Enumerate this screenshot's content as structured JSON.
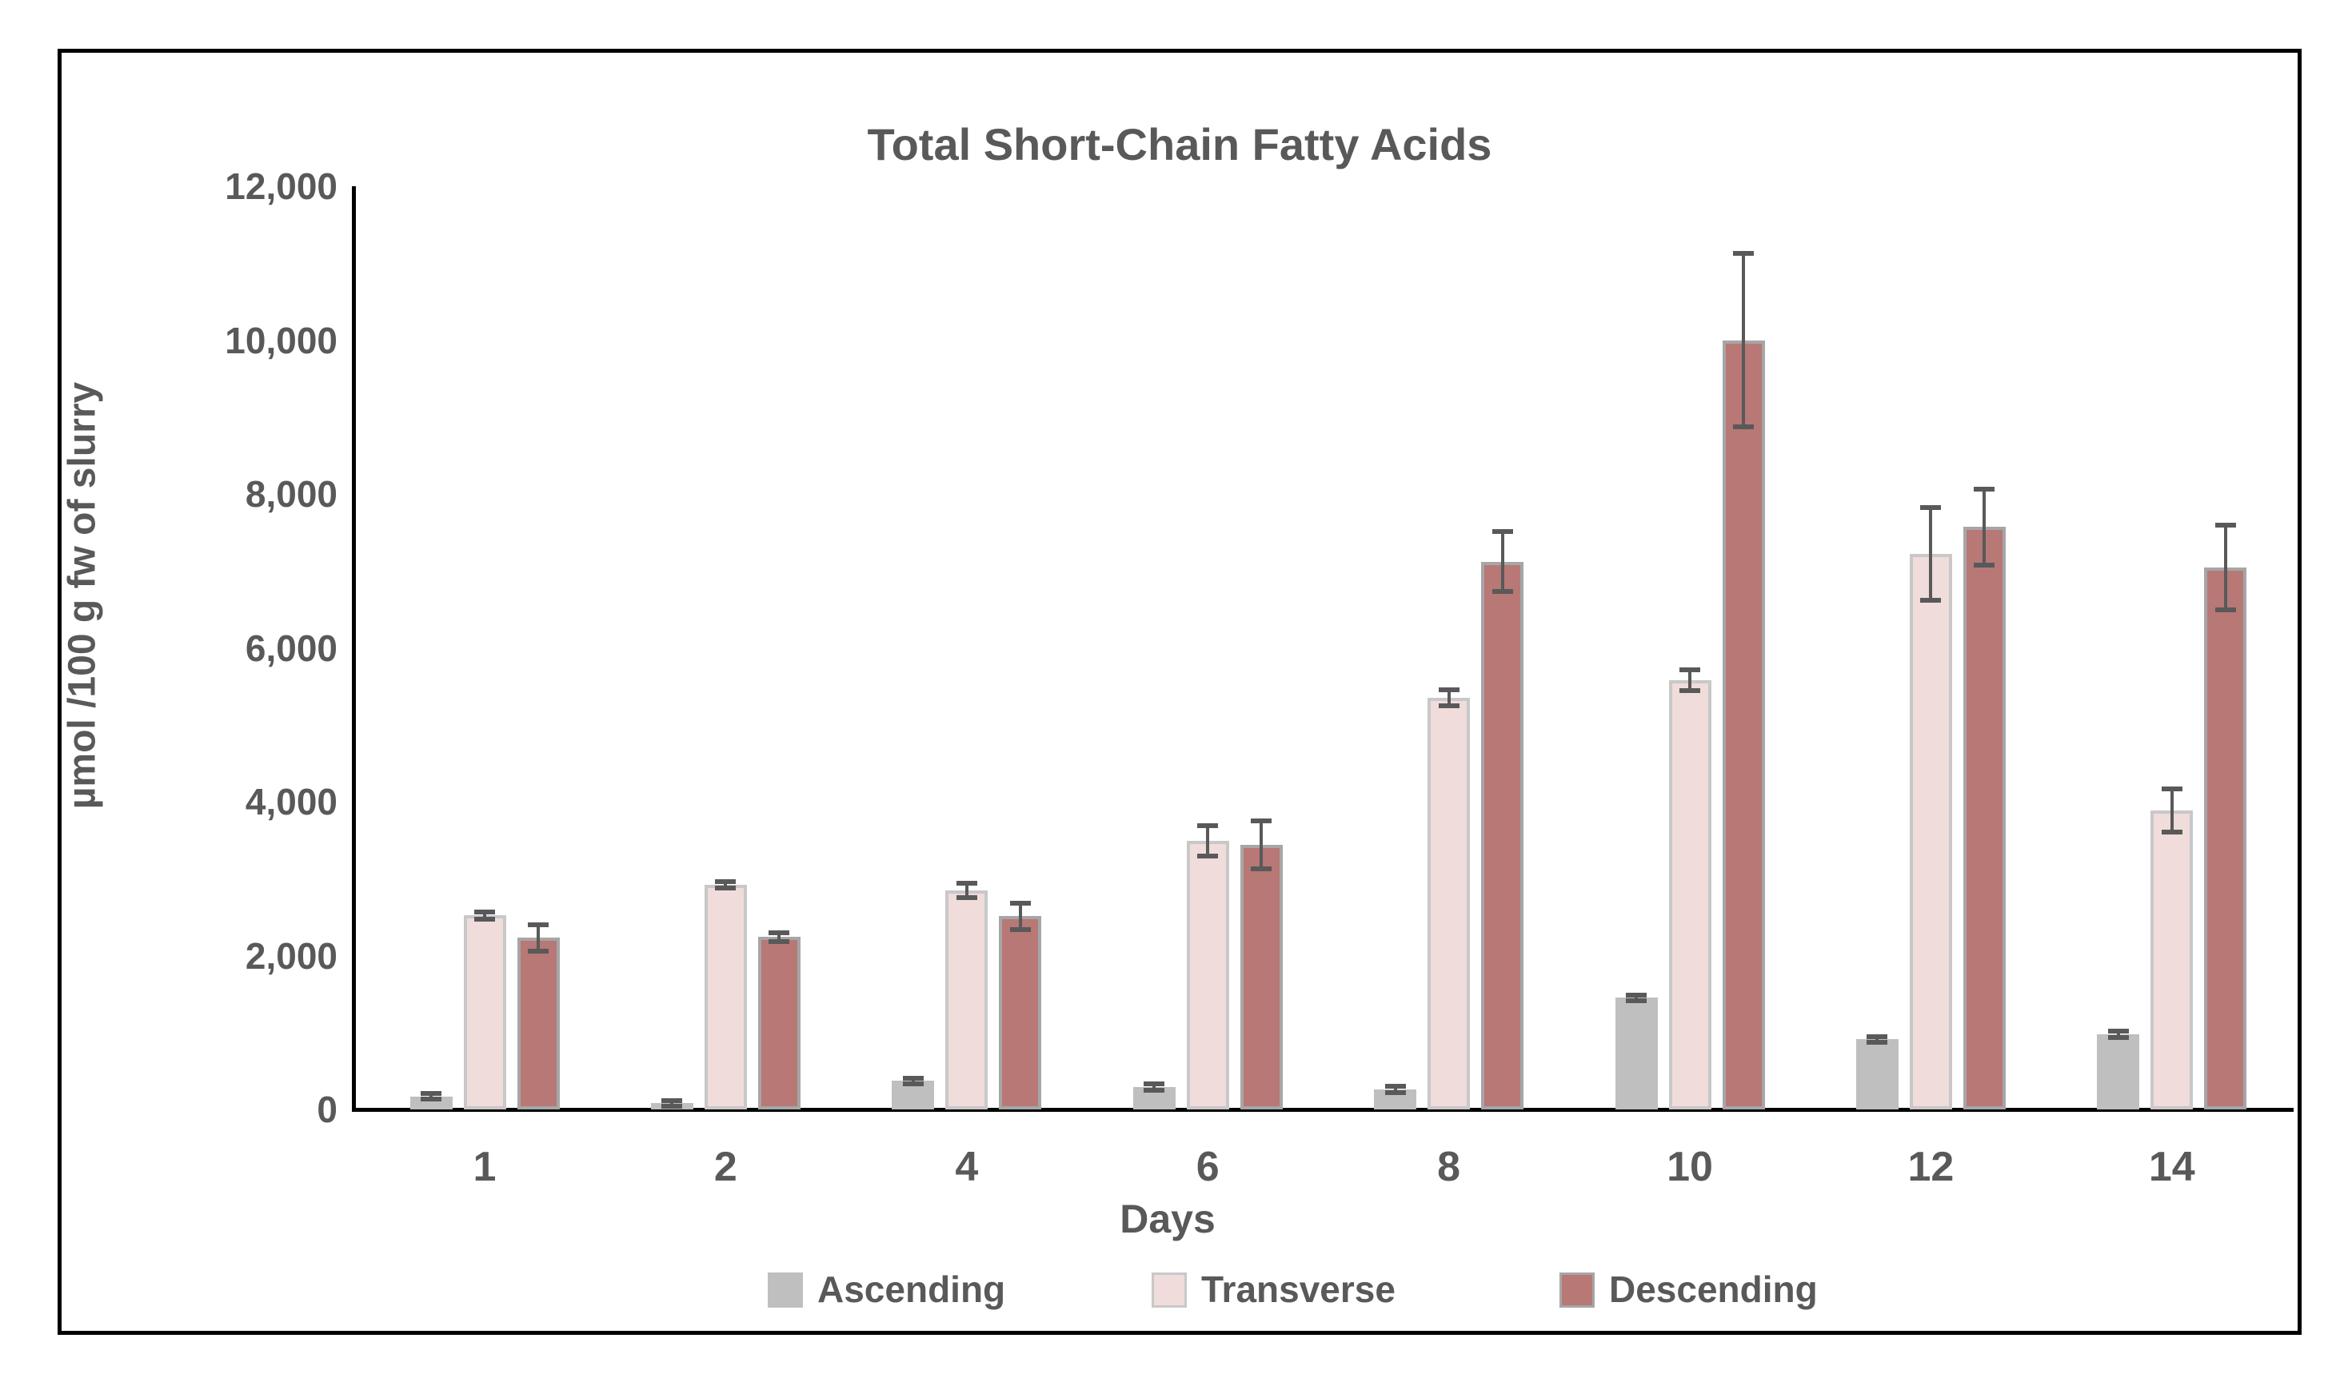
{
  "title": "Total Short-Chain Fatty Acids",
  "y_axis": {
    "title": "µmol /100 g fw of slurry",
    "tick_labels": [
      "12,000",
      "10,000",
      "8,000",
      "6,000",
      "4,000",
      "2,000",
      "0"
    ],
    "min": 0,
    "max": 12000,
    "major_unit": 2000
  },
  "x_axis": {
    "title": "Days",
    "tick_labels": [
      "1",
      "2",
      "4",
      "6",
      "8",
      "10",
      "12",
      "14"
    ]
  },
  "legend": {
    "position": "bottom",
    "entries": [
      "Ascending",
      "Transverse",
      "Descending"
    ]
  },
  "colors": {
    "text": "#595959",
    "axis_line": "#000000",
    "error_bar": "#595959",
    "ascending_fill": "#bfbfbf",
    "transverse_fill": "#f0dcdb",
    "transverse_border": "#c8c8c8",
    "descending_fill": "#b77876",
    "descending_border": "#a6a6a6"
  },
  "chart_data": {
    "type": "bar",
    "title": "Total Short-Chain Fatty Acids",
    "xlabel": "Days",
    "ylabel": "µmol /100 g fw of slurry",
    "ylim": [
      0,
      12000
    ],
    "grid": false,
    "legend_position": "bottom",
    "categories": [
      "1",
      "2",
      "4",
      "6",
      "8",
      "10",
      "12",
      "14"
    ],
    "series": [
      {
        "name": "Ascending",
        "color": "#bfbfbf",
        "border_color": "",
        "values": [
          170,
          80,
          370,
          290,
          260,
          1450,
          910,
          980
        ],
        "errors": [
          35,
          35,
          40,
          40,
          40,
          40,
          40,
          40
        ]
      },
      {
        "name": "Transverse",
        "color": "#f0dcdb",
        "border_color": "#c8c8c8",
        "values": [
          2520,
          2920,
          2850,
          3490,
          5350,
          5580,
          7220,
          3890
        ],
        "errors": [
          50,
          45,
          95,
          200,
          100,
          135,
          600,
          280
        ]
      },
      {
        "name": "Descending",
        "color": "#b77876",
        "border_color": "#a6a6a6",
        "values": [
          2230,
          2240,
          2510,
          3440,
          7120,
          10000,
          7570,
          7040
        ],
        "errors": [
          170,
          60,
          175,
          310,
          390,
          1130,
          490,
          550
        ]
      }
    ]
  }
}
